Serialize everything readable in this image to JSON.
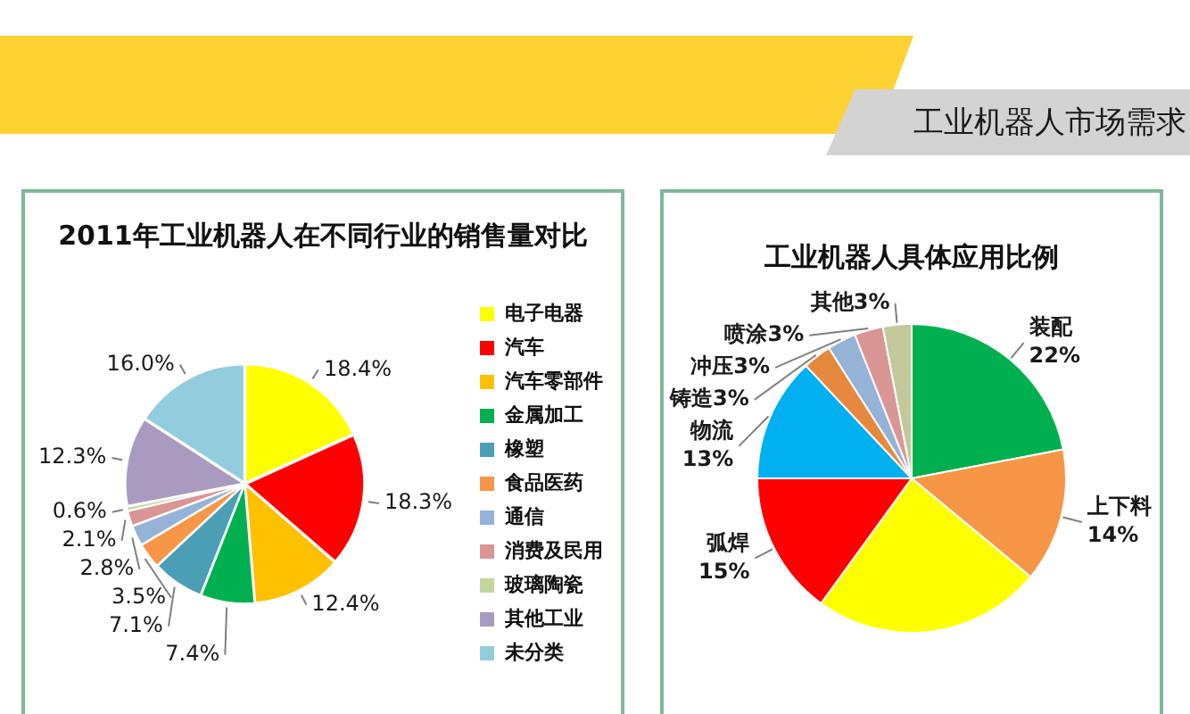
{
  "chart_data": [
    {
      "type": "other",
      "title": "工业机器人市场需求"
    },
    {
      "type": "pie",
      "title": "2011年工业机器人在不同行业的销售量对比",
      "categories": [
        "电子电器",
        "汽车",
        "汽车零部件",
        "金属加工",
        "橡塑",
        "食品医药",
        "通信",
        "消费及民用",
        "玻璃陶瓷",
        "其他工业",
        "未分类"
      ],
      "values": [
        18.4,
        18.3,
        12.4,
        7.4,
        7.1,
        3.5,
        2.8,
        2.1,
        0.6,
        12.3,
        16.0
      ],
      "colors": [
        "#ffff00",
        "#ff0000",
        "#ffc000",
        "#00b050",
        "#4a9fb5",
        "#f79646",
        "#95b3d7",
        "#d99694",
        "#c3d69b",
        "#a99bc0",
        "#93cddd"
      ],
      "value_labels": [
        "18.4%",
        "18.3%",
        "12.4%",
        "7.4%",
        "7.1%",
        "3.5%",
        "2.8%",
        "2.1%",
        "0.6%",
        "12.3%",
        "16.0%"
      ],
      "legend": "right"
    },
    {
      "type": "pie",
      "title": "工业机器人具体应用比例",
      "categories": [
        "装配",
        "上下料",
        null,
        "弧焊",
        "物流",
        "铸造",
        "冲压",
        "喷涂",
        "其他"
      ],
      "values": [
        22,
        14,
        24,
        15,
        13,
        3,
        3,
        3,
        3
      ],
      "colors": [
        "#00b050",
        "#f79646",
        "#ffff00",
        "#ff0000",
        "#00b0f0",
        "#e6893f",
        "#95b3d7",
        "#d99694",
        "#c3c99b"
      ],
      "value_labels": [
        "22%",
        "14%",
        null,
        "15%",
        "13%",
        "3%",
        "3%",
        "3%",
        "3%"
      ]
    }
  ]
}
